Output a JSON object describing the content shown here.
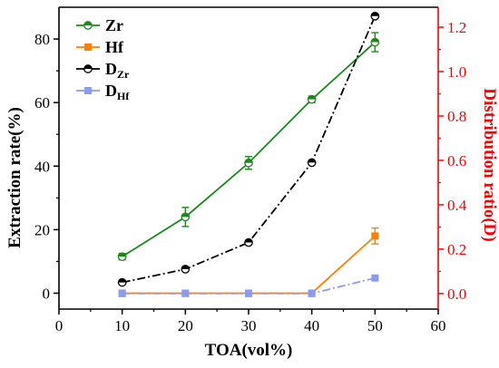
{
  "chart_data": {
    "type": "line",
    "xlabel": "TOA(vol%)",
    "ylabel": "Extraction rate(%)",
    "y2label": "Distribution ratio(D)",
    "xlim": [
      0,
      60
    ],
    "ylim": [
      -5,
      90
    ],
    "y2lim": [
      -0.07,
      1.29
    ],
    "x_ticks": [
      0,
      10,
      20,
      30,
      40,
      50,
      60
    ],
    "y_ticks": [
      0,
      20,
      40,
      60,
      80
    ],
    "y2_ticks": [
      0.0,
      0.2,
      0.4,
      0.6,
      0.8,
      1.0,
      1.2
    ],
    "grid": false,
    "legend_position": "top-left",
    "colors": {
      "Zr": "#1a8a1a",
      "Hf": "#ff8000",
      "DZr": "#000000",
      "DHf": "#8a9cf0",
      "right_axis": "#ff0000"
    },
    "series": [
      {
        "name": "Zr",
        "axis": "left",
        "style": "solid-circle",
        "x": [
          10,
          20,
          30,
          40,
          50
        ],
        "values": [
          11.5,
          24,
          41,
          61,
          79
        ],
        "errors": [
          1.0,
          3.0,
          2.0,
          1.0,
          3.0
        ]
      },
      {
        "name": "Hf",
        "axis": "left",
        "style": "solid-square",
        "x": [
          10,
          20,
          30,
          40,
          50
        ],
        "values": [
          0,
          0,
          0,
          0,
          18
        ],
        "errors": [
          0,
          0,
          0,
          0,
          2.5
        ]
      },
      {
        "name": "DZr",
        "label_main": "D",
        "label_sub": "Zr",
        "axis": "right",
        "style": "dashdot-circle",
        "x": [
          10,
          20,
          30,
          40,
          50
        ],
        "values": [
          0.05,
          0.11,
          0.23,
          0.59,
          1.25
        ]
      },
      {
        "name": "DHf",
        "label_main": "D",
        "label_sub": "Hf",
        "axis": "right",
        "style": "dashdot-square",
        "x": [
          10,
          20,
          30,
          40,
          50
        ],
        "values": [
          0.0,
          0.0,
          0.0,
          0.0,
          0.07
        ]
      }
    ]
  }
}
